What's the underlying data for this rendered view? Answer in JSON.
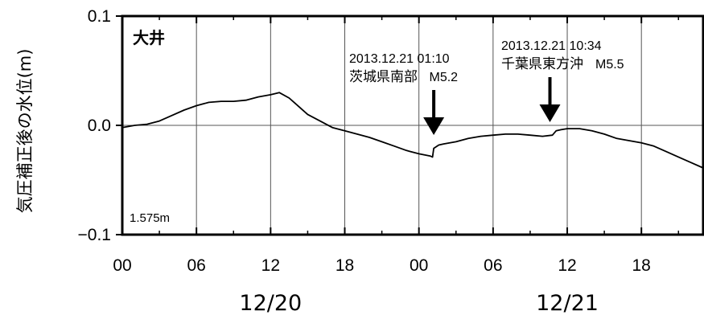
{
  "chart_data": {
    "type": "line",
    "station": "大井",
    "reference_level": "1.575m",
    "ylabel": "気圧補正後の水位(m)",
    "ylim": [
      -0.1,
      0.1
    ],
    "yticks": [
      {
        "value": 0.1,
        "label": "0.1"
      },
      {
        "value": 0.0,
        "label": "0.0"
      },
      {
        "value": -0.1,
        "label": "−0.1"
      }
    ],
    "xlim_hours": [
      0,
      47
    ],
    "xticks": [
      {
        "hour": 0,
        "label": "00"
      },
      {
        "hour": 6,
        "label": "06"
      },
      {
        "hour": 12,
        "label": "12"
      },
      {
        "hour": 18,
        "label": "18"
      },
      {
        "hour": 24,
        "label": "00"
      },
      {
        "hour": 30,
        "label": "06"
      },
      {
        "hour": 36,
        "label": "12"
      },
      {
        "hour": 42,
        "label": "18"
      }
    ],
    "dates": [
      {
        "hour": 12,
        "label": "12/20"
      },
      {
        "hour": 36,
        "label": "12/21"
      }
    ],
    "grid": true,
    "series": [
      {
        "x": [
          0,
          1,
          2,
          3,
          4,
          5,
          6,
          7,
          8,
          9,
          10,
          11,
          12,
          12.7,
          13.5,
          14,
          15,
          16,
          17,
          18,
          19,
          20,
          21,
          22,
          23,
          24,
          24.9,
          25.1,
          25.2,
          25.6,
          26,
          27,
          28,
          29,
          30,
          31,
          32,
          33,
          34,
          34.8,
          35.1,
          35.5,
          36,
          37,
          38,
          39,
          40,
          41,
          42,
          43,
          44,
          45,
          46,
          47
        ],
        "y": [
          -0.002,
          0.0,
          0.001,
          0.004,
          0.009,
          0.014,
          0.018,
          0.021,
          0.022,
          0.022,
          0.023,
          0.026,
          0.028,
          0.03,
          0.025,
          0.02,
          0.01,
          0.004,
          -0.002,
          -0.005,
          -0.008,
          -0.011,
          -0.015,
          -0.019,
          -0.023,
          -0.026,
          -0.028,
          -0.029,
          -0.021,
          -0.018,
          -0.017,
          -0.015,
          -0.012,
          -0.01,
          -0.009,
          -0.008,
          -0.008,
          -0.009,
          -0.01,
          -0.009,
          -0.005,
          -0.004,
          -0.003,
          -0.003,
          -0.005,
          -0.008,
          -0.012,
          -0.014,
          -0.016,
          -0.019,
          -0.024,
          -0.029,
          -0.034,
          -0.039
        ]
      }
    ],
    "annotations": [
      {
        "hour": 25.2,
        "date_text": "2013.12.21 01:10",
        "place": "茨城県南部",
        "magnitude": "M5.2"
      },
      {
        "hour": 34.6,
        "date_text": "2013.12.21 10:34",
        "place": "千葉県東方沖",
        "magnitude": "M5.5"
      }
    ],
    "colors": {
      "line": "#000000",
      "grid": "#555555",
      "frame": "#000000"
    }
  }
}
